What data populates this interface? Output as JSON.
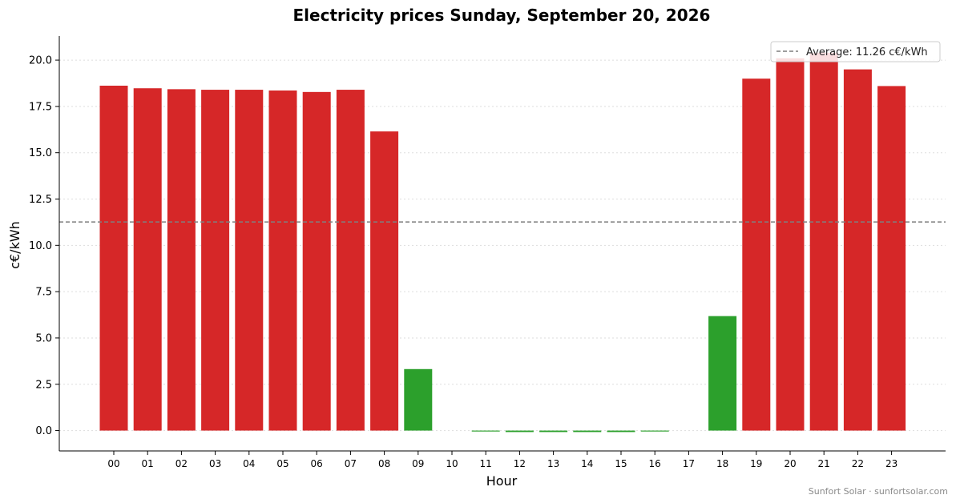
{
  "chart_data": {
    "type": "bar",
    "title": "Electricity prices Sunday, September 20, 2026",
    "xlabel": "Hour",
    "ylabel": "c€/kWh",
    "categories": [
      "00",
      "01",
      "02",
      "03",
      "04",
      "05",
      "06",
      "07",
      "08",
      "09",
      "10",
      "11",
      "12",
      "13",
      "14",
      "15",
      "16",
      "17",
      "18",
      "19",
      "20",
      "21",
      "22",
      "23"
    ],
    "values": [
      18.62,
      18.48,
      18.43,
      18.4,
      18.4,
      18.36,
      18.28,
      18.4,
      16.15,
      3.32,
      0.0,
      -0.05,
      -0.08,
      -0.08,
      -0.08,
      -0.08,
      -0.05,
      0.0,
      6.18,
      19.0,
      20.1,
      20.4,
      19.5,
      18.6
    ],
    "ylim": [
      -1.1,
      21.3
    ],
    "yticks": [
      "0.0",
      "2.5",
      "5.0",
      "7.5",
      "10.0",
      "12.5",
      "15.0",
      "17.5",
      "20.0"
    ],
    "average": 11.26,
    "legend": {
      "label": "Average: 11.26 c€/kWh",
      "position": "top-right"
    },
    "colors": {
      "above_average": "#d62728",
      "below_average": "#2ca02c",
      "average_line": "#7f7f7f"
    },
    "grid": {
      "y": true,
      "x": false,
      "style": "dotted"
    }
  },
  "credit": "Sunfort Solar · sunfortsolar.com"
}
